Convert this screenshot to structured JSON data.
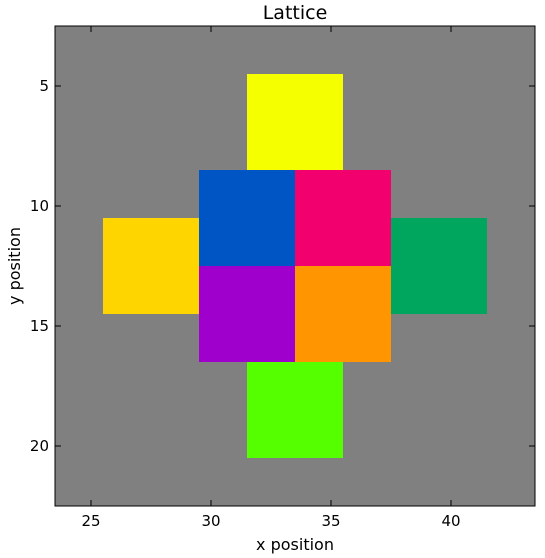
{
  "chart_data": {
    "type": "heatmap",
    "title": "Lattice",
    "xlabel": "x position",
    "ylabel": "y position",
    "xlim": [
      23.5,
      43.5
    ],
    "ylim": [
      22.5,
      2.5
    ],
    "y_inverted": true,
    "grid": false,
    "legend": "none",
    "background_color": "#808080",
    "x_ticks": [
      25,
      30,
      35,
      40
    ],
    "y_ticks": [
      5,
      10,
      15,
      20
    ],
    "cells": [
      {
        "x0": 31.5,
        "x1": 35.5,
        "y0": 4.5,
        "y1": 8.5,
        "color": "#f5ff00"
      },
      {
        "x0": 29.5,
        "x1": 33.5,
        "y0": 8.5,
        "y1": 12.5,
        "color": "#0055c4"
      },
      {
        "x0": 33.5,
        "x1": 37.5,
        "y0": 8.5,
        "y1": 12.5,
        "color": "#f2006e"
      },
      {
        "x0": 25.5,
        "x1": 29.5,
        "y0": 10.5,
        "y1": 14.5,
        "color": "#ffd500"
      },
      {
        "x0": 37.5,
        "x1": 41.5,
        "y0": 10.5,
        "y1": 14.5,
        "color": "#00a65e"
      },
      {
        "x0": 29.5,
        "x1": 33.5,
        "y0": 12.5,
        "y1": 16.5,
        "color": "#a000cc"
      },
      {
        "x0": 33.5,
        "x1": 37.5,
        "y0": 12.5,
        "y1": 16.5,
        "color": "#ff9500"
      },
      {
        "x0": 31.5,
        "x1": 35.5,
        "y0": 16.5,
        "y1": 20.5,
        "color": "#55ff00"
      }
    ]
  }
}
